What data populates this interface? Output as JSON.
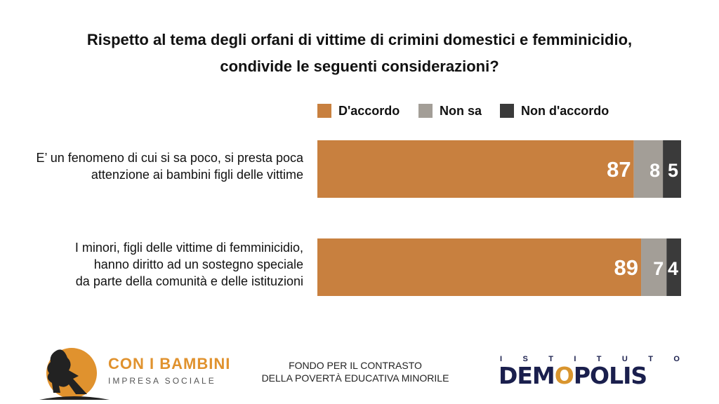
{
  "title_line1": "Rispetto al tema degli orfani di vittime di crimini domestici e femminicidio,",
  "title_line2": "condivide le seguenti considerazioni?",
  "colors": {
    "accordo": "#c8803f",
    "non_sa": "#a39e97",
    "non_accordo": "#3a3a3a"
  },
  "chart_data": {
    "type": "bar",
    "orientation": "horizontal",
    "stacked": true,
    "categories": [
      "E’ un fenomeno di cui si sa poco, si presta poca\nattenzione ai bambini figli delle vittime",
      "I minori, figli delle vittime di femminicidio,\nhanno diritto ad un sostegno speciale\nda parte della comunità e delle istituzioni"
    ],
    "series": [
      {
        "name": "D'accordo",
        "values": [
          87,
          89
        ],
        "color": "#c8803f"
      },
      {
        "name": "Non sa",
        "values": [
          8,
          7
        ],
        "color": "#a39e97"
      },
      {
        "name": "Non d'accordo",
        "values": [
          5,
          4
        ],
        "color": "#3a3a3a"
      }
    ],
    "xlim": [
      0,
      100
    ],
    "legend_position": "top",
    "grid": false
  },
  "footer": {
    "brand_name": "CON I BAMBINI",
    "brand_sub": "IMPRESA SOCIALE",
    "fund_line1": "FONDO PER IL CONTRASTO",
    "fund_line2": "DELLA POVERTÀ EDUCATIVA MINORILE",
    "demopolis_top": [
      "I",
      "S",
      "T",
      "I",
      "T",
      "U",
      "T",
      "O"
    ],
    "demopolis_pre": "DEM",
    "demopolis_o": "O",
    "demopolis_post": "POLIS"
  }
}
